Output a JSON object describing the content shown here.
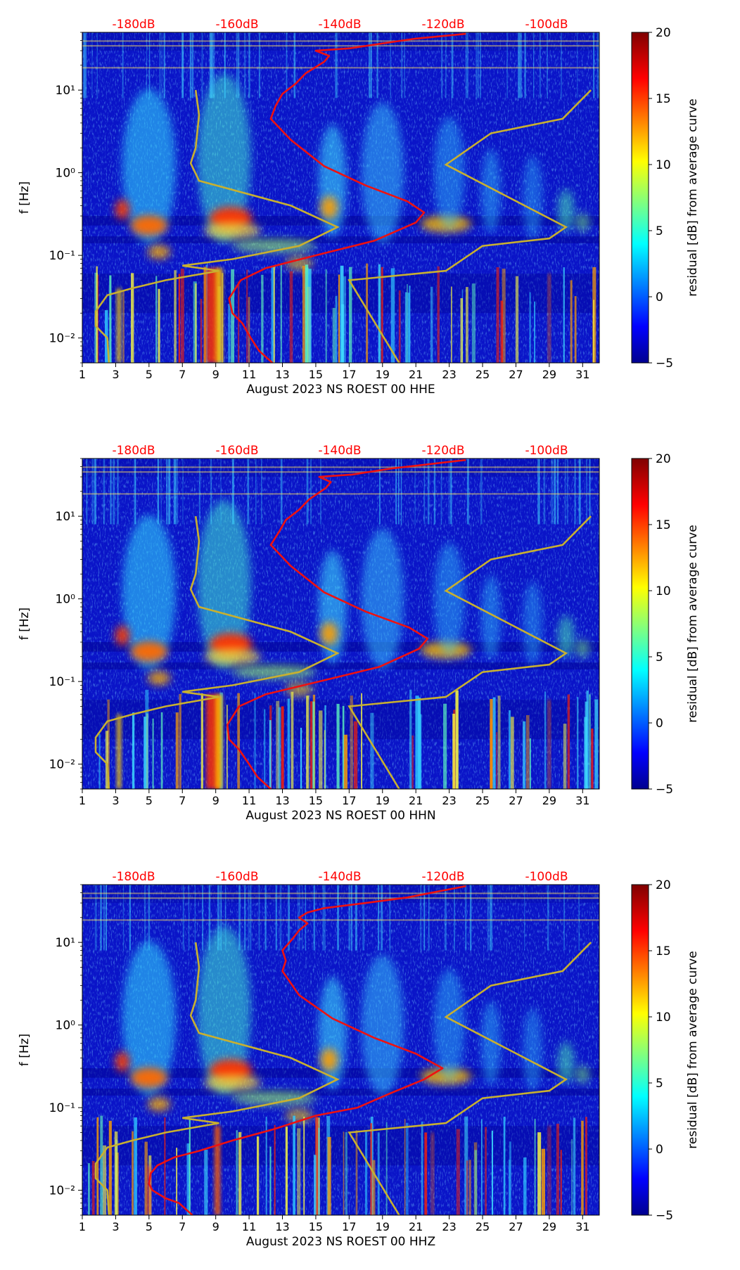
{
  "chart_data": [
    {
      "type": "heatmap",
      "subtype": "spectrogram",
      "xlabel": "August 2023 NS ROEST 00 HHE",
      "ylabel": "f [Hz]",
      "x_ticks": [
        "1",
        "3",
        "5",
        "7",
        "9",
        "11",
        "13",
        "15",
        "17",
        "19",
        "21",
        "23",
        "25",
        "27",
        "29",
        "31"
      ],
      "y_ticks": [
        "10⁻²",
        "10⁻¹",
        "10⁰",
        "10¹"
      ],
      "xlim": [
        1,
        32
      ],
      "ylim_hz": [
        0.005,
        50
      ],
      "top_axis_labels": [
        "-180dB",
        "-160dB",
        "-140dB",
        "-120dB",
        "-100dB"
      ],
      "colorbar": {
        "label": "residual [dB] from average curve",
        "ticks": [
          "20",
          "15",
          "10",
          "5",
          "0",
          "−5"
        ],
        "range": [
          -5,
          20
        ]
      },
      "red_curve_day_vs_hz": [
        [
          12.4,
          0.005
        ],
        [
          11.6,
          0.007
        ],
        [
          11.1,
          0.01
        ],
        [
          10.6,
          0.015
        ],
        [
          10.0,
          0.02
        ],
        [
          9.8,
          0.03
        ],
        [
          10.5,
          0.05
        ],
        [
          12.0,
          0.07
        ],
        [
          15.0,
          0.1
        ],
        [
          18.5,
          0.15
        ],
        [
          21.0,
          0.25
        ],
        [
          21.5,
          0.33
        ],
        [
          20.5,
          0.45
        ],
        [
          18.0,
          0.7
        ],
        [
          15.5,
          1.2
        ],
        [
          13.5,
          2.5
        ],
        [
          12.3,
          4.5
        ],
        [
          12.6,
          6.5
        ],
        [
          13.0,
          9.0
        ],
        [
          13.8,
          12.0
        ],
        [
          14.4,
          16.0
        ],
        [
          15.5,
          22.0
        ],
        [
          15.8,
          26.0
        ],
        [
          15.0,
          30.0
        ],
        [
          17.0,
          32.0
        ],
        [
          19.5,
          38.0
        ],
        [
          21.0,
          42.0
        ],
        [
          24.0,
          48.0
        ]
      ],
      "olive_left_curve_day_vs_hz": [
        [
          2.6,
          0.005
        ],
        [
          2.5,
          0.01
        ],
        [
          1.8,
          0.014
        ],
        [
          1.8,
          0.021
        ],
        [
          2.5,
          0.033
        ],
        [
          4.0,
          0.04
        ],
        [
          6.0,
          0.05
        ],
        [
          9.2,
          0.065
        ],
        [
          7.0,
          0.075
        ],
        [
          10.0,
          0.09
        ],
        [
          14.0,
          0.13
        ],
        [
          16.3,
          0.22
        ],
        [
          13.5,
          0.4
        ],
        [
          8.0,
          0.8
        ],
        [
          7.5,
          1.3
        ],
        [
          7.8,
          2.0
        ],
        [
          8.0,
          5.0
        ],
        [
          7.8,
          10.0
        ]
      ],
      "olive_right_curve_day_vs_hz": [
        [
          20.0,
          0.005
        ],
        [
          17.0,
          0.05
        ],
        [
          22.8,
          0.065
        ],
        [
          25.0,
          0.13
        ],
        [
          29.0,
          0.16
        ],
        [
          30.0,
          0.22
        ],
        [
          22.8,
          1.25
        ],
        [
          25.5,
          3.0
        ],
        [
          29.8,
          4.5
        ],
        [
          31.5,
          10.0
        ]
      ]
    },
    {
      "type": "heatmap",
      "subtype": "spectrogram",
      "xlabel": "August 2023 NS ROEST 00 HHN",
      "ylabel": "f [Hz]",
      "x_ticks": [
        "1",
        "3",
        "5",
        "7",
        "9",
        "11",
        "13",
        "15",
        "17",
        "19",
        "21",
        "23",
        "25",
        "27",
        "29",
        "31"
      ],
      "y_ticks": [
        "10⁻²",
        "10⁻¹",
        "10⁰",
        "10¹"
      ],
      "xlim": [
        1,
        32
      ],
      "ylim_hz": [
        0.005,
        50
      ],
      "top_axis_labels": [
        "-180dB",
        "-160dB",
        "-140dB",
        "-120dB",
        "-100dB"
      ],
      "colorbar": {
        "label": "residual [dB] from average curve",
        "ticks": [
          "20",
          "15",
          "10",
          "5",
          "0",
          "−5"
        ],
        "range": [
          -5,
          20
        ]
      },
      "red_curve_day_vs_hz": [
        [
          12.3,
          0.005
        ],
        [
          11.5,
          0.007
        ],
        [
          11.0,
          0.01
        ],
        [
          10.4,
          0.015
        ],
        [
          9.8,
          0.02
        ],
        [
          9.7,
          0.03
        ],
        [
          10.4,
          0.05
        ],
        [
          12.0,
          0.07
        ],
        [
          15.2,
          0.1
        ],
        [
          18.8,
          0.15
        ],
        [
          21.2,
          0.25
        ],
        [
          21.7,
          0.33
        ],
        [
          20.6,
          0.45
        ],
        [
          18.0,
          0.7
        ],
        [
          15.5,
          1.2
        ],
        [
          13.5,
          2.5
        ],
        [
          12.3,
          4.5
        ],
        [
          12.8,
          6.5
        ],
        [
          13.2,
          9.0
        ],
        [
          14.0,
          12.0
        ],
        [
          14.6,
          16.0
        ],
        [
          15.6,
          22.0
        ],
        [
          15.9,
          26.0
        ],
        [
          15.2,
          30.0
        ],
        [
          17.2,
          32.0
        ],
        [
          19.6,
          38.0
        ],
        [
          21.5,
          42.0
        ],
        [
          24.0,
          48.0
        ]
      ],
      "olive_left_curve_day_vs_hz": [
        [
          2.6,
          0.005
        ],
        [
          2.5,
          0.01
        ],
        [
          1.8,
          0.014
        ],
        [
          1.8,
          0.021
        ],
        [
          2.5,
          0.033
        ],
        [
          4.0,
          0.04
        ],
        [
          6.0,
          0.05
        ],
        [
          9.2,
          0.065
        ],
        [
          7.0,
          0.075
        ],
        [
          10.0,
          0.09
        ],
        [
          14.0,
          0.13
        ],
        [
          16.3,
          0.22
        ],
        [
          13.5,
          0.4
        ],
        [
          8.0,
          0.8
        ],
        [
          7.5,
          1.3
        ],
        [
          7.8,
          2.0
        ],
        [
          8.0,
          5.0
        ],
        [
          7.8,
          10.0
        ]
      ],
      "olive_right_curve_day_vs_hz": [
        [
          20.0,
          0.005
        ],
        [
          17.0,
          0.05
        ],
        [
          22.8,
          0.065
        ],
        [
          25.0,
          0.13
        ],
        [
          29.0,
          0.16
        ],
        [
          30.0,
          0.22
        ],
        [
          22.8,
          1.25
        ],
        [
          25.5,
          3.0
        ],
        [
          29.8,
          4.5
        ],
        [
          31.5,
          10.0
        ]
      ]
    },
    {
      "type": "heatmap",
      "subtype": "spectrogram",
      "xlabel": "August 2023 NS ROEST 00 HHZ",
      "ylabel": "f [Hz]",
      "x_ticks": [
        "1",
        "3",
        "5",
        "7",
        "9",
        "11",
        "13",
        "15",
        "17",
        "19",
        "21",
        "23",
        "25",
        "27",
        "29",
        "31"
      ],
      "y_ticks": [
        "10⁻²",
        "10⁻¹",
        "10⁰",
        "10¹"
      ],
      "xlim": [
        1,
        32
      ],
      "ylim_hz": [
        0.005,
        50
      ],
      "top_axis_labels": [
        "-180dB",
        "-160dB",
        "-140dB",
        "-120dB",
        "-100dB"
      ],
      "colorbar": {
        "label": "residual [dB] from average curve",
        "ticks": [
          "20",
          "15",
          "10",
          "5",
          "0",
          "−5"
        ],
        "range": [
          -5,
          20
        ]
      },
      "red_curve_day_vs_hz": [
        [
          7.6,
          0.005
        ],
        [
          6.8,
          0.007
        ],
        [
          6.0,
          0.008
        ],
        [
          5.2,
          0.01
        ],
        [
          5.0,
          0.012
        ],
        [
          5.1,
          0.016
        ],
        [
          5.5,
          0.02
        ],
        [
          6.5,
          0.025
        ],
        [
          8.0,
          0.03
        ],
        [
          10.0,
          0.04
        ],
        [
          12.5,
          0.055
        ],
        [
          15.0,
          0.08
        ],
        [
          17.5,
          0.1
        ],
        [
          19.5,
          0.15
        ],
        [
          21.5,
          0.22
        ],
        [
          22.6,
          0.3
        ],
        [
          21.0,
          0.45
        ],
        [
          18.5,
          0.7
        ],
        [
          16.0,
          1.2
        ],
        [
          14.0,
          2.3
        ],
        [
          13.0,
          4.5
        ],
        [
          13.2,
          6.0
        ],
        [
          13.0,
          8.0
        ],
        [
          13.6,
          11.0
        ],
        [
          14.0,
          14.0
        ],
        [
          14.5,
          17.0
        ],
        [
          14.0,
          20.0
        ],
        [
          14.5,
          23.0
        ],
        [
          15.5,
          26.0
        ],
        [
          18.0,
          30.0
        ],
        [
          20.5,
          35.0
        ],
        [
          22.5,
          42.0
        ],
        [
          24.0,
          48.0
        ]
      ],
      "olive_left_curve_day_vs_hz": [
        [
          2.6,
          0.005
        ],
        [
          2.5,
          0.01
        ],
        [
          1.8,
          0.014
        ],
        [
          1.8,
          0.021
        ],
        [
          2.5,
          0.033
        ],
        [
          4.0,
          0.04
        ],
        [
          6.0,
          0.05
        ],
        [
          9.2,
          0.065
        ],
        [
          7.0,
          0.075
        ],
        [
          10.0,
          0.09
        ],
        [
          14.0,
          0.13
        ],
        [
          16.3,
          0.22
        ],
        [
          13.5,
          0.4
        ],
        [
          8.0,
          0.8
        ],
        [
          7.5,
          1.3
        ],
        [
          7.8,
          2.0
        ],
        [
          8.0,
          5.0
        ],
        [
          7.8,
          10.0
        ]
      ],
      "olive_right_curve_day_vs_hz": [
        [
          20.0,
          0.005
        ],
        [
          17.0,
          0.05
        ],
        [
          22.8,
          0.065
        ],
        [
          25.0,
          0.13
        ],
        [
          29.0,
          0.16
        ],
        [
          30.0,
          0.22
        ],
        [
          22.8,
          1.25
        ],
        [
          25.5,
          3.0
        ],
        [
          29.8,
          4.5
        ],
        [
          31.5,
          10.0
        ]
      ]
    }
  ],
  "colors": {
    "red_curve": "#ee1111",
    "olive_curve": "#c8b030",
    "top_labels": "#ff0000",
    "axis": "#000000",
    "background_low": "#00008f"
  }
}
